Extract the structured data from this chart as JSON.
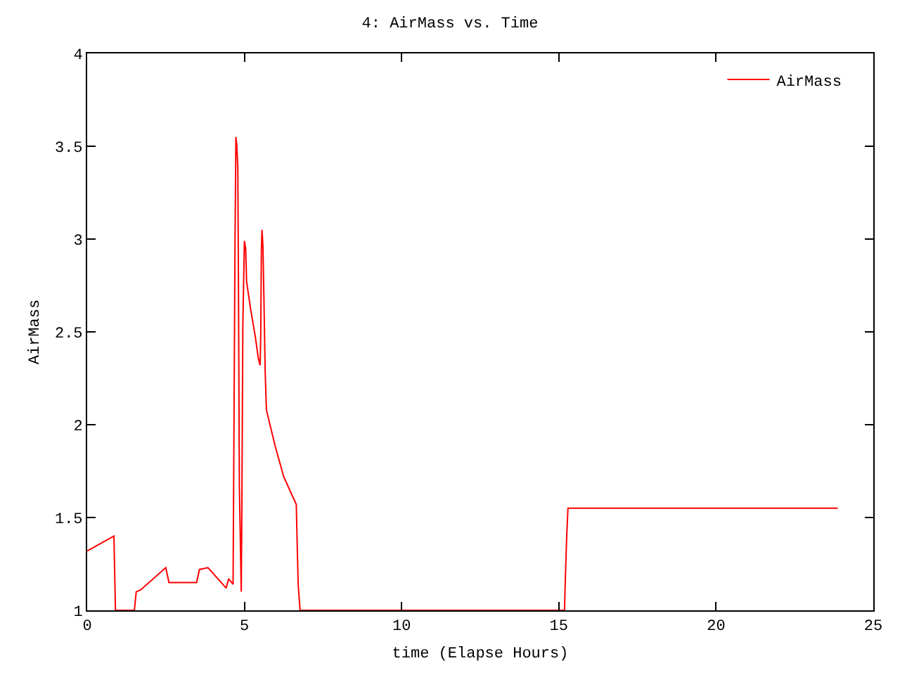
{
  "chart_data": {
    "type": "line",
    "title": "4: AirMass vs. Time",
    "xlabel": "time (Elapse Hours)",
    "ylabel": "AirMass",
    "xlim": [
      0,
      25
    ],
    "xticks": [
      0,
      5,
      10,
      15,
      20,
      25
    ],
    "ylim": [
      1,
      4
    ],
    "yticks": [
      1,
      1.5,
      2,
      2.5,
      3,
      3.5,
      4
    ],
    "legend": "top right",
    "marker": "none",
    "line_style": "solid",
    "series": [
      {
        "name": "AirMass",
        "color": "#ff0000",
        "x": [
          0,
          0.85,
          0.9,
          1.3,
          1.5,
          1.56,
          1.7,
          2.5,
          2.6,
          3.48,
          3.57,
          3.84,
          4.42,
          4.5,
          4.64,
          4.66,
          4.7,
          4.73,
          4.76,
          4.79,
          4.81,
          4.84,
          4.9,
          4.92,
          4.95,
          5.0,
          5.04,
          5.07,
          5.2,
          5.35,
          5.44,
          5.5,
          5.52,
          5.54,
          5.56,
          5.59,
          5.62,
          5.66,
          5.7,
          5.97,
          6.25,
          6.65,
          6.67,
          6.71,
          6.77,
          15.18,
          15.2,
          15.25,
          15.29,
          23.87
        ],
        "values": [
          1.32,
          1.4,
          1.0,
          1.0,
          1.0,
          1.1,
          1.11,
          1.23,
          1.15,
          1.15,
          1.22,
          1.23,
          1.12,
          1.17,
          1.14,
          1.74,
          2.95,
          3.55,
          3.5,
          3.39,
          2.79,
          1.67,
          1.1,
          1.58,
          2.53,
          2.99,
          2.95,
          2.77,
          2.62,
          2.47,
          2.36,
          2.32,
          2.49,
          2.94,
          3.05,
          2.96,
          2.69,
          2.29,
          2.08,
          1.89,
          1.72,
          1.57,
          1.42,
          1.14,
          1.0,
          1.0,
          1.13,
          1.4,
          1.55,
          1.55
        ]
      }
    ]
  }
}
